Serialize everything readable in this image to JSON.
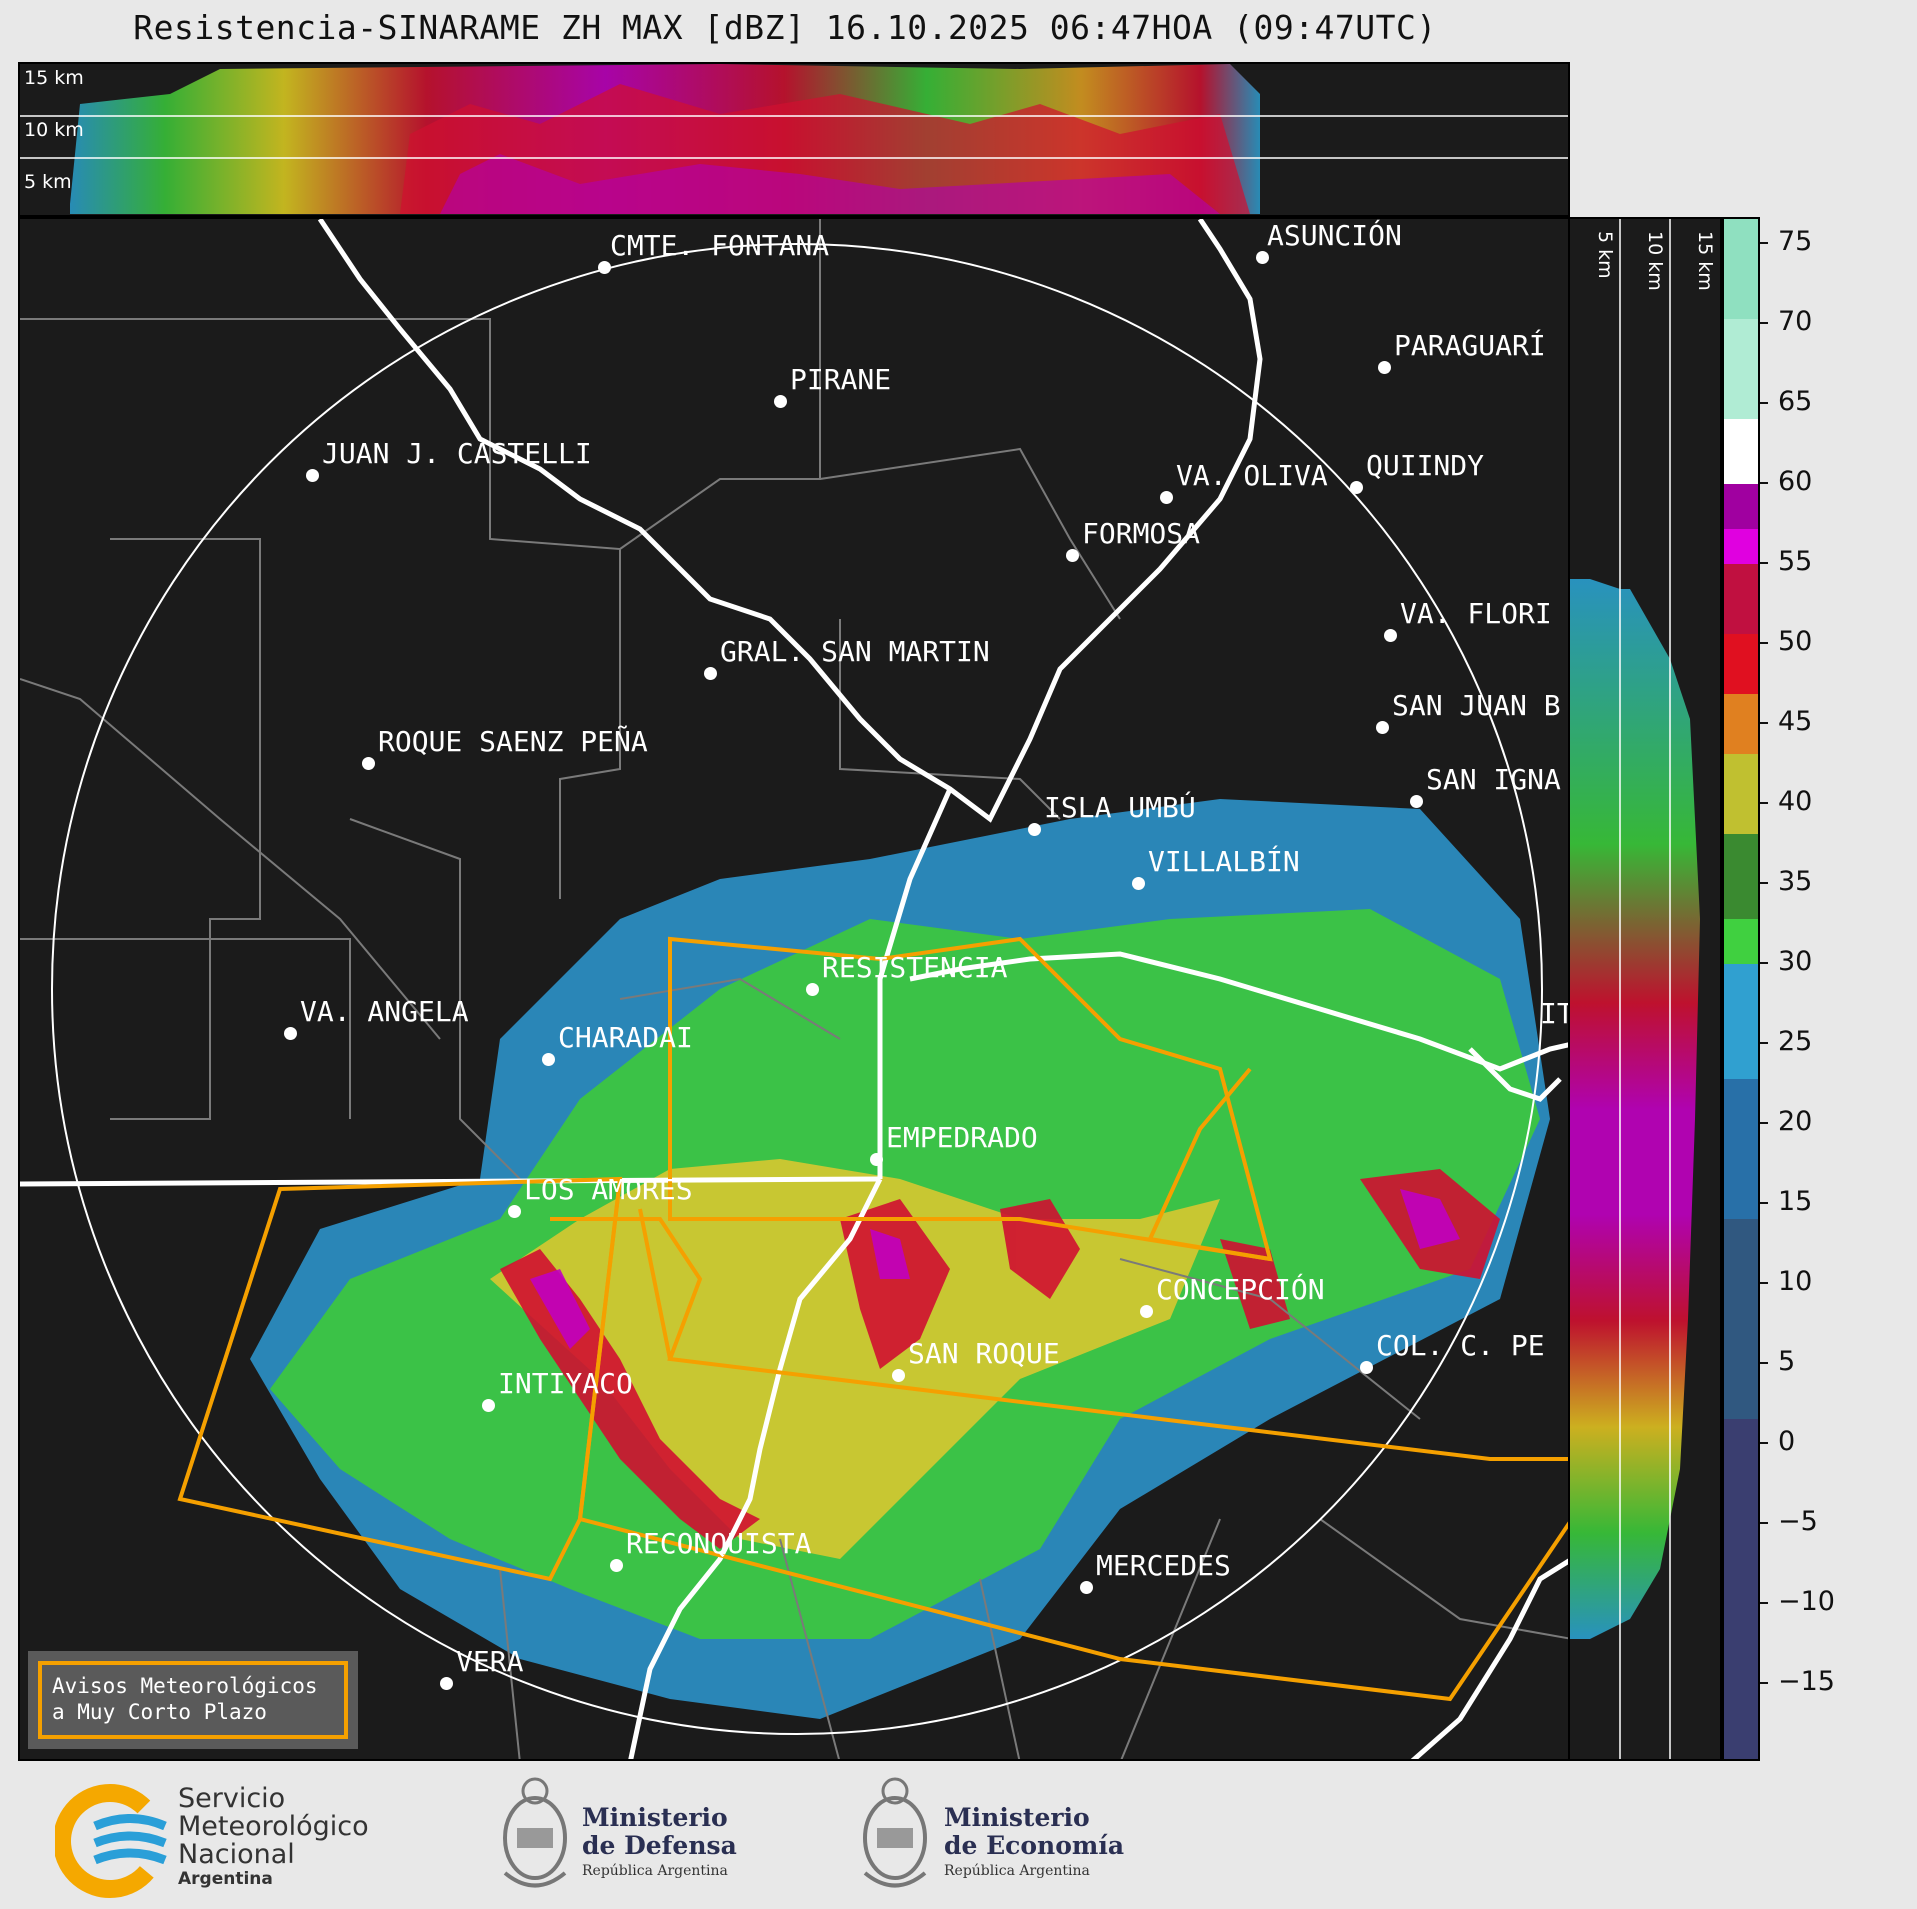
{
  "title": "Resistencia-SINARAME ZH MAX [dBZ] 16.10.2025 06:47HOA (09:47UTC)",
  "top_strip": {
    "altitude_labels": [
      "15 km",
      "10 km",
      "5 km"
    ]
  },
  "side_strip": {
    "altitude_labels": [
      "5 km",
      "10 km",
      "15 km"
    ]
  },
  "colorbar": {
    "unit": "dBZ",
    "ticks": [
      "75",
      "70",
      "65",
      "60",
      "55",
      "50",
      "45",
      "40",
      "35",
      "30",
      "25",
      "20",
      "15",
      "10",
      "5",
      "0",
      "−5",
      "−10",
      "−15"
    ]
  },
  "cities": [
    {
      "name": "CMTE. FONTANA"
    },
    {
      "name": "ASUNCIÓN"
    },
    {
      "name": "PARAGUARÍ"
    },
    {
      "name": "PIRANE"
    },
    {
      "name": "JUAN J. CASTELLI"
    },
    {
      "name": "VA. OLIVA"
    },
    {
      "name": "QUIINDY"
    },
    {
      "name": "FORMOSA"
    },
    {
      "name": "VA. FLORI"
    },
    {
      "name": "GRAL. SAN MARTIN"
    },
    {
      "name": "SAN JUAN B"
    },
    {
      "name": "ROQUE SAENZ PEÑA"
    },
    {
      "name": "SAN IGNA"
    },
    {
      "name": "ISLA UMBÚ"
    },
    {
      "name": "VILLALBÍN"
    },
    {
      "name": "RESISTENCIA"
    },
    {
      "name": "VA. ANGELA"
    },
    {
      "name": "CHARADAI"
    },
    {
      "name": "IT"
    },
    {
      "name": "EMPEDRADO"
    },
    {
      "name": "LOS AMORES"
    },
    {
      "name": "CONCEPCIÓN"
    },
    {
      "name": "COL. C. PE"
    },
    {
      "name": "SAN ROQUE"
    },
    {
      "name": "INTIYACO"
    },
    {
      "name": "RECONQUISTA"
    },
    {
      "name": "MERCEDES"
    },
    {
      "name": "VERA"
    }
  ],
  "legend": {
    "line1": "Avisos Meteorológicos",
    "line2": "a Muy Corto Plazo"
  },
  "footer": {
    "smn": [
      "Servicio",
      "Meteorológico",
      "Nacional",
      "Argentina"
    ],
    "defensa": [
      "Ministerio",
      "de Defensa",
      "República Argentina"
    ],
    "economia": [
      "Ministerio",
      "de Economía",
      "República Argentina"
    ]
  },
  "colors": {
    "background": "#1b1b1b",
    "warning_outline": "#f5a000",
    "range_ring": "#ffffff",
    "borders": "#7a7a7a"
  }
}
